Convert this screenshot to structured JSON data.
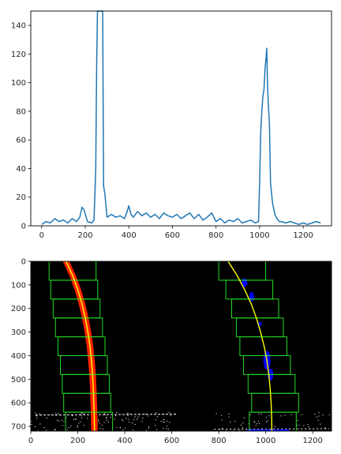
{
  "colors": {
    "histogram_line": "#1f77b4",
    "warp_background": "#000000",
    "warp_pixels": "#ffffff",
    "search_windows": "#22dd22",
    "left_lane_pixels": "#ff2200",
    "right_lane_pixels": "#0000ff",
    "fit_line": "#ffff00"
  },
  "chart_data": [
    {
      "type": "line",
      "title": "",
      "xlabel": "",
      "ylabel": "",
      "xlim": [
        -50,
        1330
      ],
      "ylim": [
        0,
        150
      ],
      "xticks": [
        0,
        200,
        400,
        600,
        800,
        1000,
        1200
      ],
      "yticks": [
        0,
        20,
        40,
        60,
        80,
        100,
        120,
        140
      ],
      "grid": false,
      "series": [
        {
          "x": [
            0,
            20,
            40,
            60,
            80,
            100,
            120,
            140,
            160,
            175,
            185,
            195,
            210,
            230,
            240,
            248,
            252,
            256,
            280,
            284,
            290,
            300,
            320,
            340,
            360,
            380,
            390,
            400,
            410,
            420,
            440,
            460,
            480,
            500,
            520,
            540,
            560,
            580,
            600,
            620,
            640,
            660,
            680,
            700,
            720,
            740,
            760,
            780,
            800,
            820,
            840,
            860,
            880,
            900,
            920,
            940,
            960,
            980,
            995,
            1000,
            1005,
            1010,
            1015,
            1020,
            1025,
            1030,
            1033,
            1036,
            1040,
            1045,
            1050,
            1055,
            1060,
            1065,
            1070,
            1080,
            1090,
            1100,
            1120,
            1140,
            1160,
            1180,
            1200,
            1220,
            1240,
            1260,
            1280
          ],
          "y": [
            1,
            3,
            2,
            5,
            3,
            4,
            2,
            5,
            3,
            6,
            13,
            11,
            3,
            2,
            4,
            40,
            110,
            150,
            150,
            28,
            22,
            6,
            8,
            6,
            7,
            5,
            9,
            14,
            8,
            6,
            10,
            7,
            9,
            6,
            8,
            5,
            9,
            7,
            6,
            8,
            5,
            7,
            9,
            5,
            8,
            4,
            6,
            9,
            3,
            5,
            2,
            4,
            3,
            5,
            2,
            3,
            4,
            2,
            3,
            30,
            65,
            80,
            90,
            95,
            110,
            118,
            124,
            100,
            85,
            72,
            30,
            22,
            15,
            12,
            8,
            5,
            3,
            3,
            2,
            3,
            2,
            1,
            2,
            1,
            2,
            3,
            2
          ]
        }
      ]
    },
    {
      "type": "image",
      "title": "",
      "xlabel": "",
      "ylabel": "",
      "xlim": [
        0,
        1280
      ],
      "ylim": [
        720,
        0
      ],
      "xticks": [
        0,
        200,
        400,
        600,
        800,
        1000,
        1200
      ],
      "yticks": [
        0,
        100,
        200,
        300,
        400,
        500,
        600,
        700
      ],
      "grid": false,
      "windows": {
        "left_x_centers": [
          178,
          185,
          195,
          205,
          216,
          226,
          234,
          240,
          248
        ],
        "right_x_centers": [
          900,
          930,
          955,
          975,
          990,
          1005,
          1025,
          1040,
          1030
        ],
        "half_width": 100,
        "row_height": 80
      },
      "fit_left": [
        [
          150,
          0
        ],
        [
          178,
          60
        ],
        [
          200,
          120
        ],
        [
          218,
          180
        ],
        [
          232,
          240
        ],
        [
          243,
          300
        ],
        [
          252,
          360
        ],
        [
          258,
          420
        ],
        [
          263,
          480
        ],
        [
          266,
          540
        ],
        [
          268,
          600
        ],
        [
          270,
          660
        ],
        [
          271,
          720
        ]
      ],
      "fit_right": [
        [
          840,
          0
        ],
        [
          878,
          60
        ],
        [
          910,
          120
        ],
        [
          938,
          180
        ],
        [
          960,
          240
        ],
        [
          978,
          300
        ],
        [
          993,
          360
        ],
        [
          1005,
          420
        ],
        [
          1013,
          480
        ],
        [
          1019,
          540
        ],
        [
          1023,
          600
        ],
        [
          1025,
          660
        ],
        [
          1026,
          720
        ]
      ]
    }
  ]
}
